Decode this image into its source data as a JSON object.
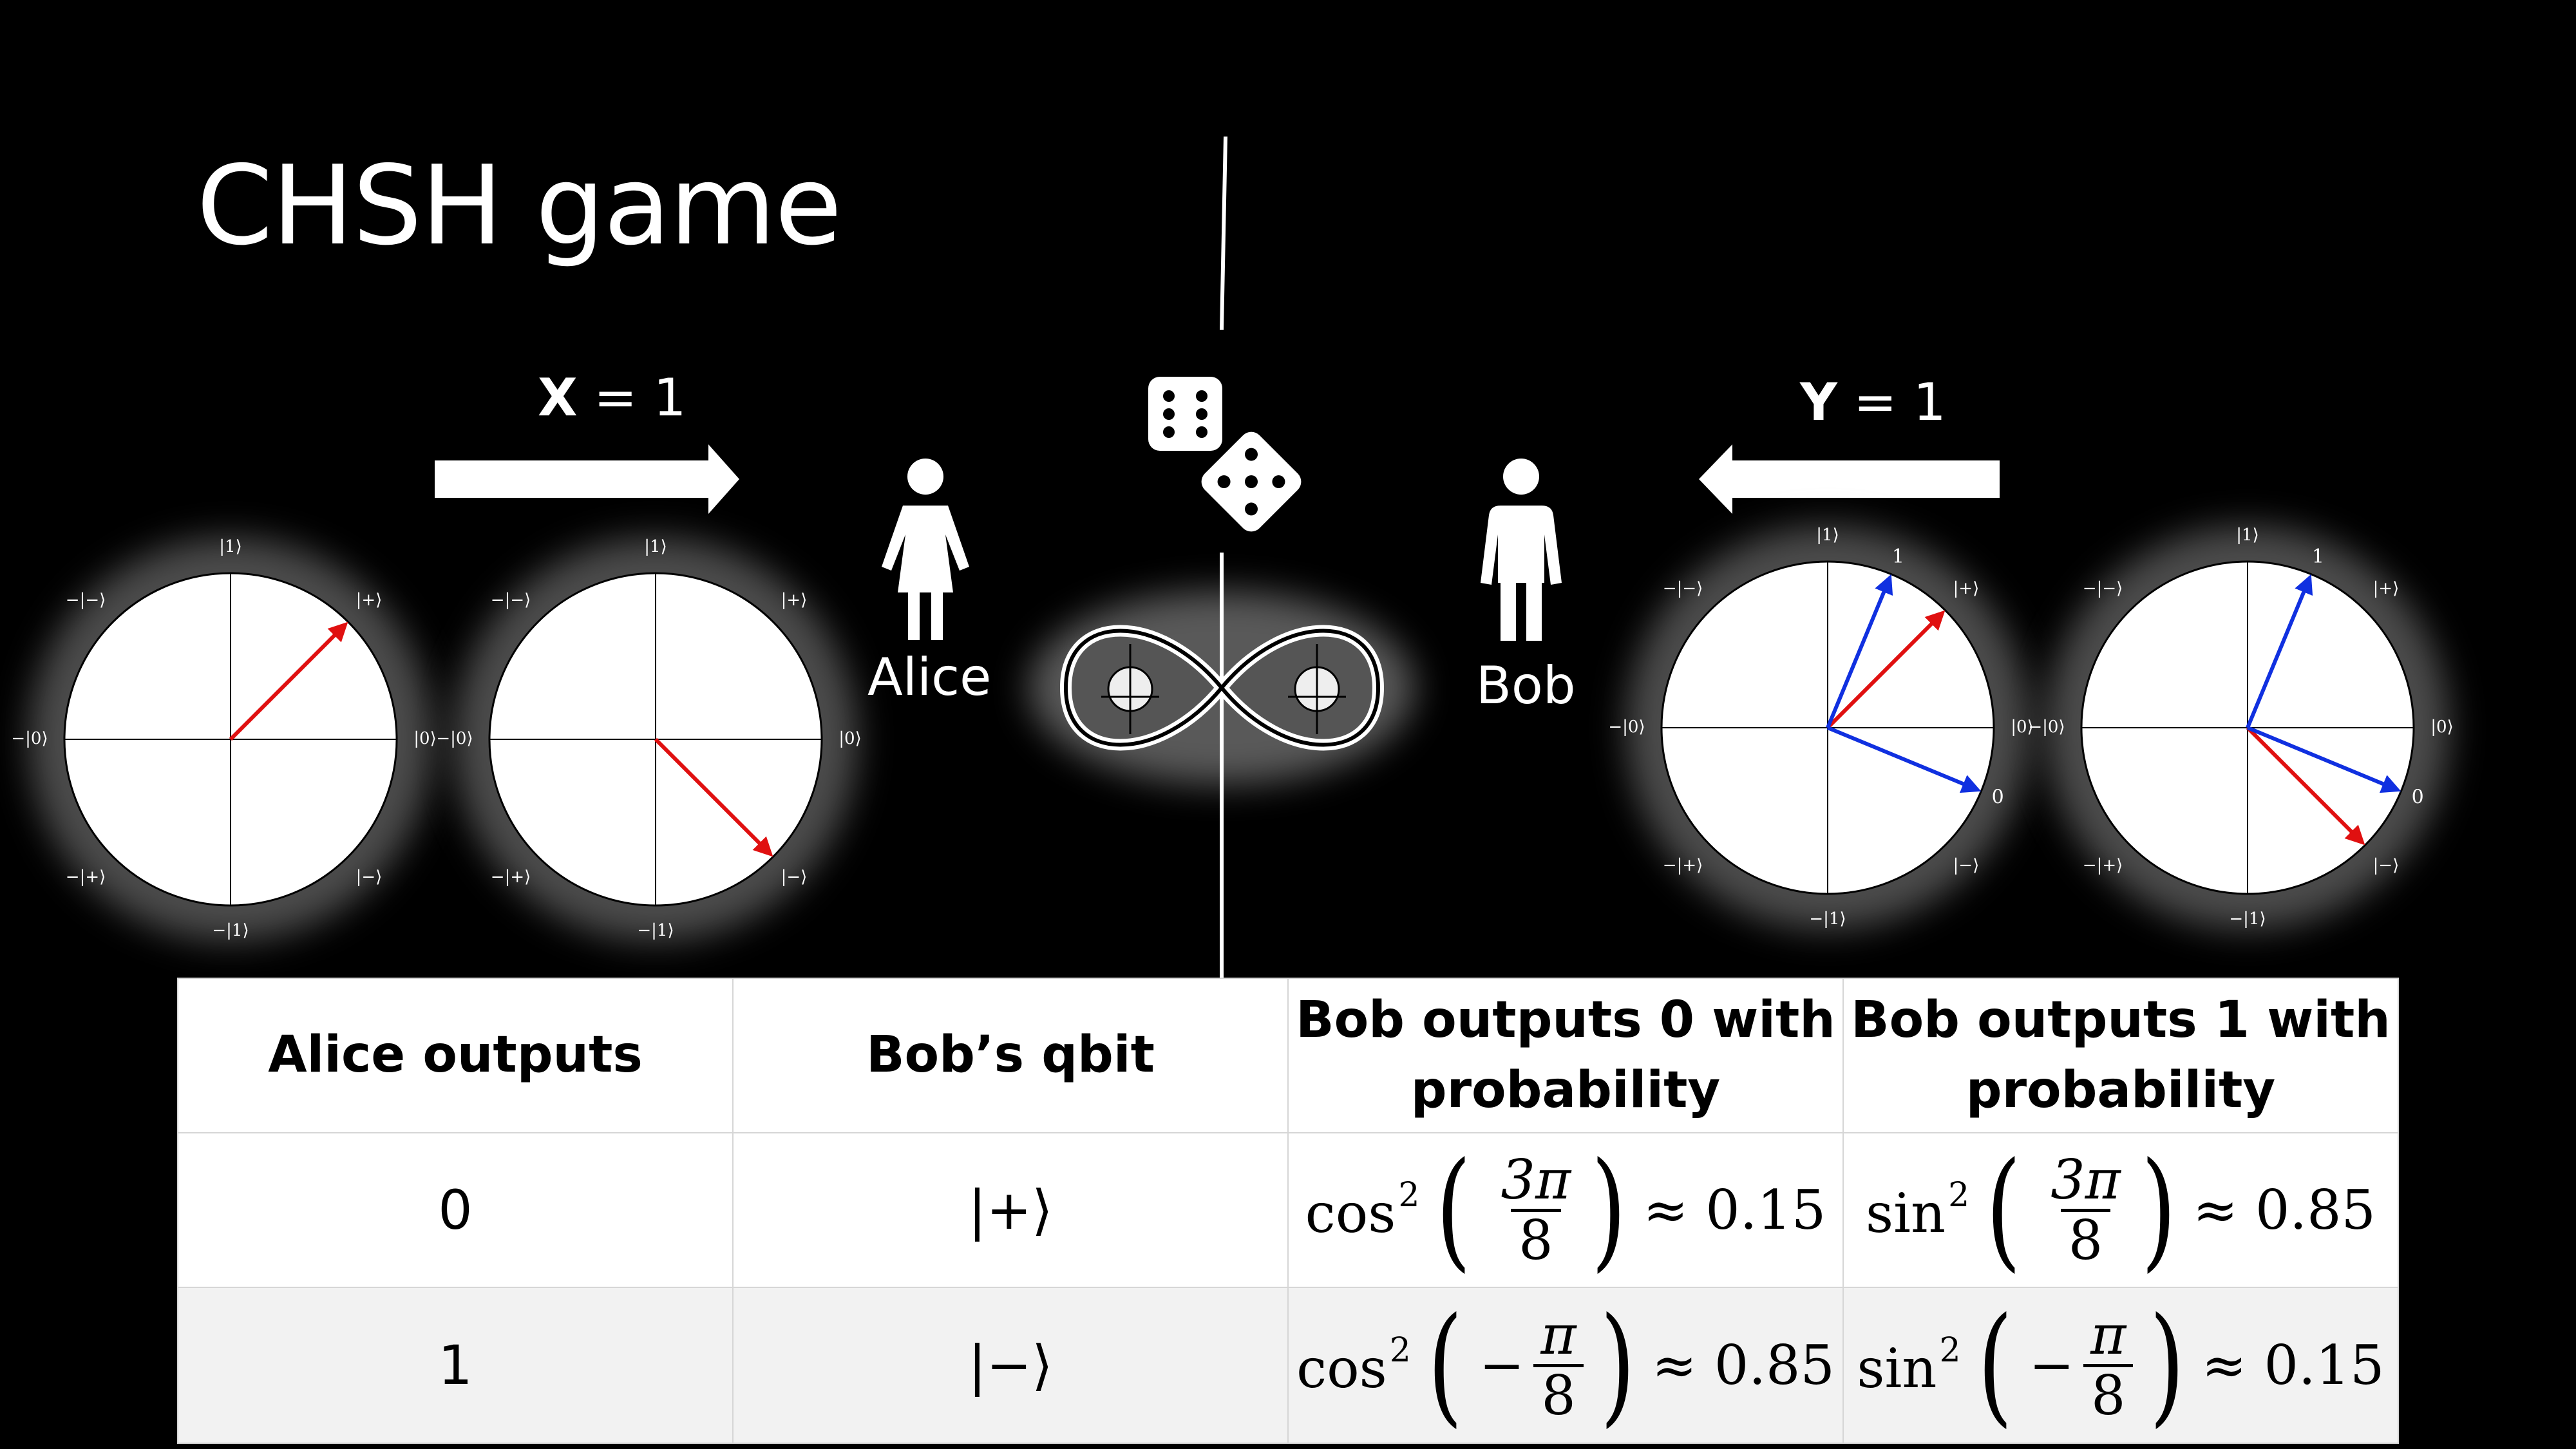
{
  "title": "CHSH game",
  "alice": {
    "arrow_var": "X",
    "arrow_value": "= 1",
    "name": "Alice",
    "icon": "woman-icon"
  },
  "bob": {
    "arrow_var": "Y",
    "arrow_value": "= 1",
    "name": "Bob",
    "icon": "man-icon"
  },
  "center_icons": [
    "dice-icon",
    "entangled-pair-icon"
  ],
  "circle_labels": {
    "top": "|1⟩",
    "bottom": "−|1⟩",
    "right": "|0⟩",
    "left": "−|0⟩",
    "top_right": "|+⟩",
    "top_left": "−|−⟩",
    "bottom_right": "|−⟩",
    "bottom_left": "−|+⟩",
    "bob_axis_1": "1",
    "bob_axis_0": "0"
  },
  "colors": {
    "state_vector": "#e01010",
    "measurement_basis": "#1030e0",
    "background": "#000000"
  },
  "table": {
    "headers": {
      "alice_outputs": "Alice outputs",
      "bobs_qbit": "Bob’s qbit",
      "bob0_line1": "Bob outputs 0 with",
      "bob0_line2": "probability",
      "bob1_line1": "Bob outputs 1 with",
      "bob1_line2": "probability"
    },
    "rows": [
      {
        "alice": "0",
        "qbit": "|+⟩",
        "p0": {
          "fn": "cos",
          "exp": "2",
          "num": "3π",
          "den": "8",
          "neg": "",
          "approx": "≈ 0.15"
        },
        "p1": {
          "fn": "sin",
          "exp": "2",
          "num": "3π",
          "den": "8",
          "neg": "",
          "approx": "≈ 0.85"
        }
      },
      {
        "alice": "1",
        "qbit": "|−⟩",
        "p0": {
          "fn": "cos",
          "exp": "2",
          "num": "π",
          "den": "8",
          "neg": "−",
          "approx": "≈ 0.85"
        },
        "p1": {
          "fn": "sin",
          "exp": "2",
          "num": "π",
          "den": "8",
          "neg": "−",
          "approx": "≈ 0.15"
        }
      }
    ]
  }
}
